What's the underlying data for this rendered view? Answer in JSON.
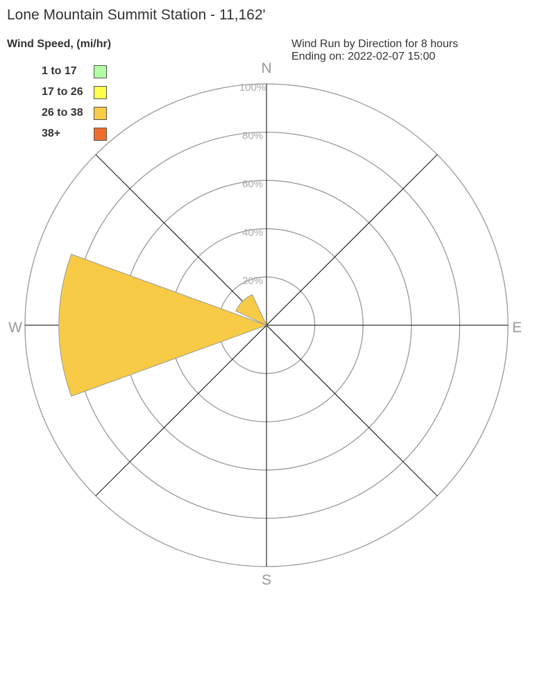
{
  "chart_data": {
    "type": "wind-rose",
    "title": "Lone Mountain Summit Station - 11,162'",
    "legend_title": "Wind Speed, (mi/hr)",
    "subtitle_line1": "Wind Run by Direction for 8 hours",
    "subtitle_line2": "Ending on: 2022-02-07 15:00",
    "legend": [
      {
        "label": "1 to 17",
        "color": "#b3ffa3"
      },
      {
        "label": "17 to 26",
        "color": "#ffff4d"
      },
      {
        "label": "26 to 38",
        "color": "#f7cb45"
      },
      {
        "label": "38+",
        "color": "#ee6e2e"
      }
    ],
    "directions": [
      "N",
      "E",
      "S",
      "W"
    ],
    "ring_labels": [
      "20%",
      "40%",
      "60%",
      "80%",
      "100%"
    ],
    "rmax": 100,
    "petals": [
      {
        "direction": "W",
        "bearing": 270,
        "speed_bin": "26 to 38",
        "percent": 86
      },
      {
        "direction": "NW",
        "bearing": 315,
        "speed_bin": "26 to 38",
        "percent": 14
      }
    ]
  }
}
